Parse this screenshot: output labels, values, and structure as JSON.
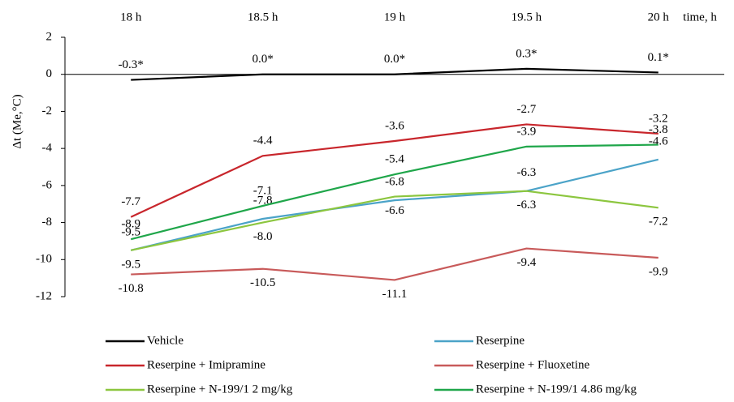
{
  "chart_data": {
    "type": "line",
    "x_label": "time, h",
    "y_label": "Δt (Me,°C)",
    "categories": [
      "18 h",
      "18.5 h",
      "19 h",
      "19.5 h",
      "20 h"
    ],
    "ylim": [
      -12,
      2
    ],
    "yticks": [
      -12,
      -10,
      -8,
      -6,
      -4,
      -2,
      0,
      2
    ],
    "series": [
      {
        "name": "Vehicle",
        "color": "#000000",
        "values": [
          -0.3,
          0.0,
          0.0,
          0.3,
          0.1
        ],
        "value_labels": [
          "-0.3*",
          "0.0*",
          "0.0*",
          "0.3*",
          "0.1*"
        ]
      },
      {
        "name": "Reserpine",
        "color": "#4ba3c8",
        "values": [
          -9.5,
          -7.8,
          -6.8,
          -6.3,
          -4.6
        ],
        "value_labels": [
          "-9.5",
          "-7.8",
          "-6.8",
          "-6.3",
          "-4.6"
        ]
      },
      {
        "name": "Reserpine + Imipramine",
        "color": "#c8262c",
        "values": [
          -7.7,
          -4.4,
          -3.6,
          -2.7,
          -3.2
        ],
        "value_labels": [
          "-7.7",
          "-4.4",
          "-3.6",
          "-2.7",
          "-3.2"
        ]
      },
      {
        "name": "Reserpine + Fluoxetine",
        "color": "#c85a5a",
        "values": [
          -10.8,
          -10.5,
          -11.1,
          -9.4,
          -9.9
        ],
        "value_labels": [
          "-10.8",
          "-10.5",
          "-11.1",
          "-9.4",
          "-9.9"
        ]
      },
      {
        "name": "Reserpine + N-199/1 2 mg/kg",
        "color": "#8cc63f",
        "values": [
          -9.5,
          -8.0,
          -6.6,
          -6.3,
          -7.2
        ],
        "value_labels": [
          "-9.5",
          "-8.0",
          "-6.6",
          "-6.3",
          "-7.2"
        ]
      },
      {
        "name": "Reserpine + N-199/1 4.86 mg/kg",
        "color": "#1fa64a",
        "values": [
          -8.9,
          -7.1,
          -5.4,
          -3.9,
          -3.8
        ],
        "value_labels": [
          "-8.9",
          "-7.1",
          "-5.4",
          "-3.9",
          "-3.8"
        ]
      }
    ]
  }
}
